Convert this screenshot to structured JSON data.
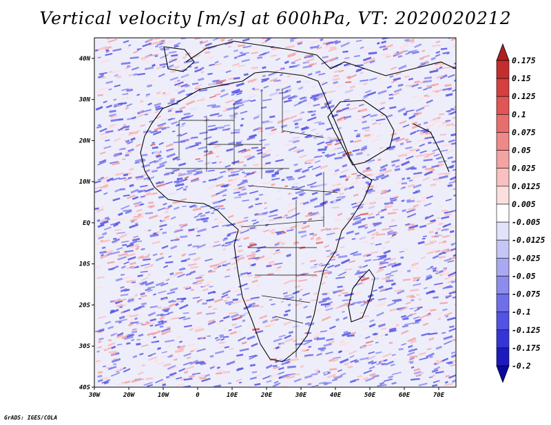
{
  "title": "Vertical velocity [m/s] at 600hPa, VT: 2020020212",
  "footer": "GrADS: IGES/COLA",
  "map": {
    "region": "Africa",
    "lon_range": [
      -30,
      75
    ],
    "lat_range": [
      -40,
      45
    ],
    "x_ticks": [
      {
        "label": "30W",
        "lon": -30
      },
      {
        "label": "20W",
        "lon": -20
      },
      {
        "label": "10W",
        "lon": -10
      },
      {
        "label": "0",
        "lon": 0
      },
      {
        "label": "10E",
        "lon": 10
      },
      {
        "label": "20E",
        "lon": 20
      },
      {
        "label": "30E",
        "lon": 30
      },
      {
        "label": "40E",
        "lon": 40
      },
      {
        "label": "50E",
        "lon": 50
      },
      {
        "label": "60E",
        "lon": 60
      },
      {
        "label": "70E",
        "lon": 70
      }
    ],
    "y_ticks": [
      {
        "label": "40N",
        "lat": 40
      },
      {
        "label": "30N",
        "lat": 30
      },
      {
        "label": "20N",
        "lat": 20
      },
      {
        "label": "10N",
        "lat": 10
      },
      {
        "label": "EQ",
        "lat": 0
      },
      {
        "label": "10S",
        "lat": -10
      },
      {
        "label": "20S",
        "lat": -20
      },
      {
        "label": "30S",
        "lat": -30
      },
      {
        "label": "40S",
        "lat": -40
      }
    ]
  },
  "colorbar": {
    "levels": [
      "0.175",
      "0.15",
      "0.125",
      "0.1",
      "0.075",
      "0.05",
      "0.025",
      "0.0125",
      "0.005",
      "-0.005",
      "-0.0125",
      "-0.025",
      "-0.05",
      "-0.075",
      "-0.1",
      "-0.125",
      "-0.175",
      "-0.2"
    ],
    "colors": [
      "#b01f1f",
      "#c42e2e",
      "#d43f3f",
      "#e05555",
      "#e86e6e",
      "#ef8888",
      "#f4a3a3",
      "#f8c0c0",
      "#fcdede",
      "#ffffff",
      "#e2e2fb",
      "#c6c6f6",
      "#a9a9f1",
      "#8c8ced",
      "#6f6fe8",
      "#5252e3",
      "#3535d6",
      "#1b1bbf",
      "#0a0a9e"
    ]
  }
}
